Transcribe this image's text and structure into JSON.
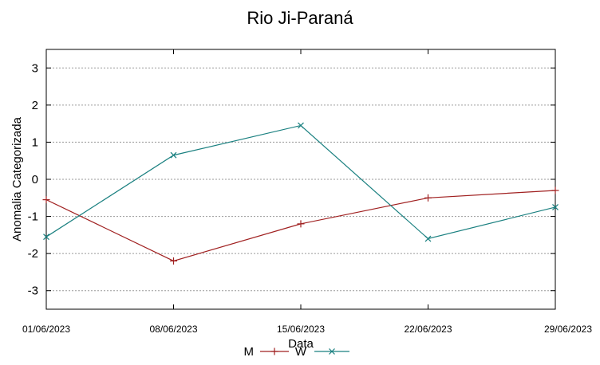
{
  "chart_data": {
    "type": "line",
    "title": "Rio Ji-Paraná",
    "xlabel": "Data",
    "ylabel": "Anomalia Categorizada",
    "x": [
      "01/06/2023",
      "08/06/2023",
      "15/06/2023",
      "22/06/2023",
      "29/06/2023"
    ],
    "ylim": [
      -3.5,
      3.5
    ],
    "yticks": [
      3,
      2,
      1,
      0,
      -1,
      -2,
      -3
    ],
    "grid": true,
    "legend_position": "bottom-center",
    "series": [
      {
        "name": "M",
        "color": "#a02020",
        "marker": "plus",
        "values": [
          -0.55,
          -2.2,
          -1.2,
          -0.5,
          -0.3
        ]
      },
      {
        "name": "W",
        "color": "#1a8080",
        "marker": "cross",
        "values": [
          -1.55,
          0.65,
          1.45,
          -1.6,
          -0.75
        ]
      }
    ]
  }
}
